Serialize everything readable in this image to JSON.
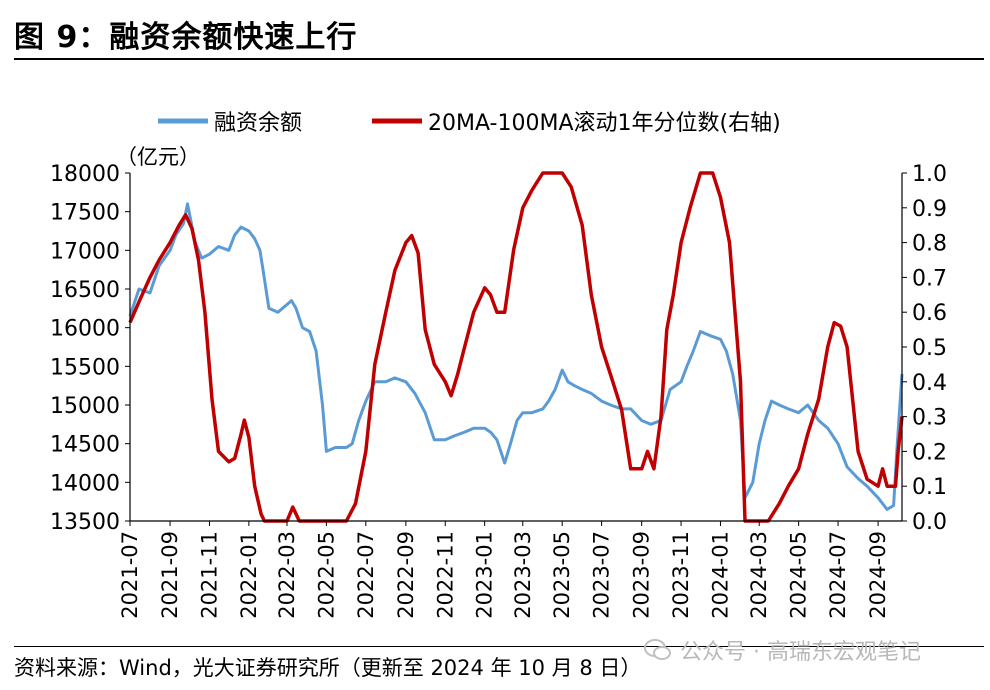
{
  "figure": {
    "title": "图 9：融资余额快速上行",
    "source": "资料来源：Wind，光大证券研究所（更新至 2024 年 10 月 8 日）",
    "watermark": "公众号 · 高瑞东宏观笔记",
    "watermark_icon": "wechat-icon"
  },
  "chart_data": {
    "type": "line",
    "left_unit": "（亿元）",
    "legend_position": "top",
    "grid": false,
    "x_ticks": [
      "2021-07",
      "2021-09",
      "2021-11",
      "2022-01",
      "2022-03",
      "2022-05",
      "2022-07",
      "2022-09",
      "2022-11",
      "2023-01",
      "2023-03",
      "2023-05",
      "2023-07",
      "2023-09",
      "2023-11",
      "2024-01",
      "2024-03",
      "2024-05",
      "2024-07",
      "2024-09"
    ],
    "y_left": {
      "min": 13500,
      "max": 18000,
      "ticks": [
        13500,
        14000,
        14500,
        15000,
        15500,
        16000,
        16500,
        17000,
        17500,
        18000
      ]
    },
    "y_right": {
      "min": 0.0,
      "max": 1.0,
      "ticks": [
        "0.0",
        "0.1",
        "0.2",
        "0.3",
        "0.4",
        "0.5",
        "0.6",
        "0.7",
        "0.8",
        "0.9",
        "1.0"
      ]
    },
    "x_range": [
      "2021-07-01",
      "2024-10-08"
    ],
    "series": [
      {
        "name": "融资余额",
        "axis": "left",
        "color": "#5b9bd5",
        "points": [
          [
            "2021-07-01",
            16150
          ],
          [
            "2021-07-15",
            16500
          ],
          [
            "2021-08-01",
            16450
          ],
          [
            "2021-08-15",
            16800
          ],
          [
            "2021-09-01",
            17000
          ],
          [
            "2021-09-10",
            17200
          ],
          [
            "2021-09-22",
            17350
          ],
          [
            "2021-09-28",
            17600
          ],
          [
            "2021-10-10",
            17100
          ],
          [
            "2021-10-20",
            16900
          ],
          [
            "2021-11-01",
            16950
          ],
          [
            "2021-11-15",
            17050
          ],
          [
            "2021-12-01",
            17000
          ],
          [
            "2021-12-10",
            17200
          ],
          [
            "2021-12-20",
            17300
          ],
          [
            "2022-01-01",
            17250
          ],
          [
            "2022-01-10",
            17150
          ],
          [
            "2022-01-18",
            17000
          ],
          [
            "2022-01-22",
            16800
          ],
          [
            "2022-02-01",
            16250
          ],
          [
            "2022-02-15",
            16200
          ],
          [
            "2022-03-01",
            16300
          ],
          [
            "2022-03-08",
            16350
          ],
          [
            "2022-03-15",
            16250
          ],
          [
            "2022-03-25",
            16000
          ],
          [
            "2022-04-05",
            15950
          ],
          [
            "2022-04-15",
            15700
          ],
          [
            "2022-04-25",
            15000
          ],
          [
            "2022-05-01",
            14400
          ],
          [
            "2022-05-15",
            14450
          ],
          [
            "2022-06-01",
            14450
          ],
          [
            "2022-06-10",
            14500
          ],
          [
            "2022-06-20",
            14800
          ],
          [
            "2022-07-01",
            15050
          ],
          [
            "2022-07-15",
            15300
          ],
          [
            "2022-08-01",
            15300
          ],
          [
            "2022-08-15",
            15350
          ],
          [
            "2022-09-01",
            15300
          ],
          [
            "2022-09-15",
            15150
          ],
          [
            "2022-10-01",
            14900
          ],
          [
            "2022-10-15",
            14550
          ],
          [
            "2022-11-01",
            14550
          ],
          [
            "2022-11-15",
            14600
          ],
          [
            "2022-12-01",
            14650
          ],
          [
            "2022-12-15",
            14700
          ],
          [
            "2023-01-01",
            14700
          ],
          [
            "2023-01-10",
            14650
          ],
          [
            "2023-01-20",
            14550
          ],
          [
            "2023-02-01",
            14250
          ],
          [
            "2023-02-10",
            14500
          ],
          [
            "2023-02-20",
            14800
          ],
          [
            "2023-03-01",
            14900
          ],
          [
            "2023-03-15",
            14900
          ],
          [
            "2023-04-01",
            14950
          ],
          [
            "2023-04-10",
            15050
          ],
          [
            "2023-04-20",
            15200
          ],
          [
            "2023-05-01",
            15450
          ],
          [
            "2023-05-10",
            15300
          ],
          [
            "2023-05-20",
            15250
          ],
          [
            "2023-06-01",
            15200
          ],
          [
            "2023-06-15",
            15150
          ],
          [
            "2023-07-01",
            15050
          ],
          [
            "2023-07-15",
            15000
          ],
          [
            "2023-08-01",
            14950
          ],
          [
            "2023-08-15",
            14950
          ],
          [
            "2023-09-01",
            14800
          ],
          [
            "2023-09-15",
            14750
          ],
          [
            "2023-10-01",
            14800
          ],
          [
            "2023-10-15",
            15200
          ],
          [
            "2023-11-01",
            15300
          ],
          [
            "2023-11-10",
            15500
          ],
          [
            "2023-11-20",
            15700
          ],
          [
            "2023-12-01",
            15950
          ],
          [
            "2023-12-15",
            15900
          ],
          [
            "2024-01-01",
            15850
          ],
          [
            "2024-01-10",
            15700
          ],
          [
            "2024-01-20",
            15400
          ],
          [
            "2024-02-01",
            14800
          ],
          [
            "2024-02-08",
            13800
          ],
          [
            "2024-02-20",
            14000
          ],
          [
            "2024-03-01",
            14500
          ],
          [
            "2024-03-10",
            14800
          ],
          [
            "2024-03-20",
            15050
          ],
          [
            "2024-04-01",
            15000
          ],
          [
            "2024-04-15",
            14950
          ],
          [
            "2024-05-01",
            14900
          ],
          [
            "2024-05-15",
            15000
          ],
          [
            "2024-06-01",
            14800
          ],
          [
            "2024-06-15",
            14700
          ],
          [
            "2024-07-01",
            14500
          ],
          [
            "2024-07-15",
            14200
          ],
          [
            "2024-08-01",
            14050
          ],
          [
            "2024-08-15",
            13950
          ],
          [
            "2024-09-01",
            13800
          ],
          [
            "2024-09-15",
            13650
          ],
          [
            "2024-09-25",
            13700
          ],
          [
            "2024-09-30",
            14400
          ],
          [
            "2024-10-08",
            15400
          ]
        ]
      },
      {
        "name": "20MA-100MA滚动1年分位数(右轴)",
        "axis": "right",
        "color": "#c00000",
        "points": [
          [
            "2021-07-01",
            0.57
          ],
          [
            "2021-07-15",
            0.63
          ],
          [
            "2021-08-01",
            0.7
          ],
          [
            "2021-08-15",
            0.75
          ],
          [
            "2021-09-01",
            0.8
          ],
          [
            "2021-09-15",
            0.85
          ],
          [
            "2021-09-25",
            0.88
          ],
          [
            "2021-10-05",
            0.84
          ],
          [
            "2021-10-15",
            0.75
          ],
          [
            "2021-10-25",
            0.6
          ],
          [
            "2021-11-05",
            0.35
          ],
          [
            "2021-11-15",
            0.2
          ],
          [
            "2021-12-01",
            0.17
          ],
          [
            "2021-12-10",
            0.18
          ],
          [
            "2021-12-20",
            0.25
          ],
          [
            "2021-12-25",
            0.29
          ],
          [
            "2022-01-01",
            0.24
          ],
          [
            "2022-01-10",
            0.1
          ],
          [
            "2022-01-20",
            0.02
          ],
          [
            "2022-01-25",
            0.0
          ],
          [
            "2022-03-01",
            0.0
          ],
          [
            "2022-03-10",
            0.04
          ],
          [
            "2022-03-20",
            0.0
          ],
          [
            "2022-06-01",
            0.0
          ],
          [
            "2022-06-15",
            0.05
          ],
          [
            "2022-07-01",
            0.2
          ],
          [
            "2022-07-15",
            0.45
          ],
          [
            "2022-08-01",
            0.6
          ],
          [
            "2022-08-15",
            0.72
          ],
          [
            "2022-09-01",
            0.8
          ],
          [
            "2022-09-10",
            0.82
          ],
          [
            "2022-09-20",
            0.77
          ],
          [
            "2022-10-01",
            0.55
          ],
          [
            "2022-10-15",
            0.45
          ],
          [
            "2022-11-01",
            0.4
          ],
          [
            "2022-11-10",
            0.36
          ],
          [
            "2022-11-20",
            0.42
          ],
          [
            "2022-12-01",
            0.5
          ],
          [
            "2022-12-15",
            0.6
          ],
          [
            "2023-01-01",
            0.67
          ],
          [
            "2023-01-10",
            0.65
          ],
          [
            "2023-01-20",
            0.6
          ],
          [
            "2023-02-01",
            0.6
          ],
          [
            "2023-02-15",
            0.78
          ],
          [
            "2023-03-01",
            0.9
          ],
          [
            "2023-03-15",
            0.95
          ],
          [
            "2023-04-01",
            1.0
          ],
          [
            "2023-05-01",
            1.0
          ],
          [
            "2023-05-15",
            0.96
          ],
          [
            "2023-06-01",
            0.85
          ],
          [
            "2023-06-15",
            0.65
          ],
          [
            "2023-07-01",
            0.5
          ],
          [
            "2023-07-15",
            0.42
          ],
          [
            "2023-08-01",
            0.32
          ],
          [
            "2023-08-15",
            0.15
          ],
          [
            "2023-09-01",
            0.15
          ],
          [
            "2023-09-10",
            0.2
          ],
          [
            "2023-09-20",
            0.15
          ],
          [
            "2023-10-01",
            0.3
          ],
          [
            "2023-10-10",
            0.55
          ],
          [
            "2023-10-20",
            0.65
          ],
          [
            "2023-11-01",
            0.8
          ],
          [
            "2023-11-15",
            0.9
          ],
          [
            "2023-12-01",
            1.0
          ],
          [
            "2023-12-20",
            1.0
          ],
          [
            "2024-01-01",
            0.93
          ],
          [
            "2024-01-15",
            0.8
          ],
          [
            "2024-02-01",
            0.4
          ],
          [
            "2024-02-08",
            0.0
          ],
          [
            "2024-03-15",
            0.0
          ],
          [
            "2024-04-01",
            0.05
          ],
          [
            "2024-04-15",
            0.1
          ],
          [
            "2024-05-01",
            0.15
          ],
          [
            "2024-05-15",
            0.25
          ],
          [
            "2024-06-01",
            0.35
          ],
          [
            "2024-06-15",
            0.5
          ],
          [
            "2024-06-25",
            0.57
          ],
          [
            "2024-07-05",
            0.56
          ],
          [
            "2024-07-15",
            0.5
          ],
          [
            "2024-08-01",
            0.2
          ],
          [
            "2024-08-15",
            0.12
          ],
          [
            "2024-09-01",
            0.1
          ],
          [
            "2024-09-08",
            0.15
          ],
          [
            "2024-09-15",
            0.1
          ],
          [
            "2024-09-28",
            0.1
          ],
          [
            "2024-10-02",
            0.2
          ],
          [
            "2024-10-08",
            0.3
          ]
        ]
      }
    ]
  }
}
